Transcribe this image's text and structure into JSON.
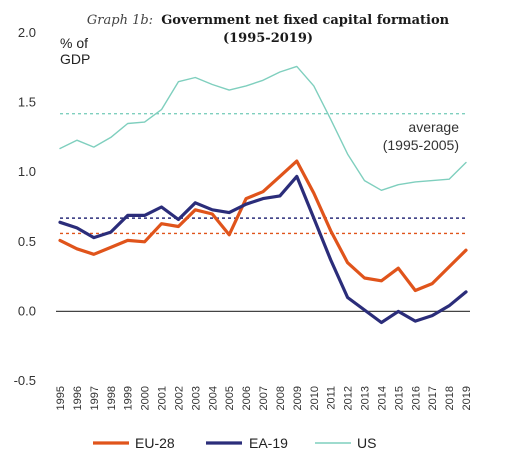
{
  "chart_data": {
    "type": "line",
    "title_prefix": "Graph 1b:",
    "title_main": "Government net fixed capital formation",
    "title_years": "(1995-2019)",
    "ylabel": "% of GDP",
    "ylabel_lines": [
      "% of",
      "GDP"
    ],
    "ylim": [
      -0.5,
      2.0
    ],
    "yticks": [
      "2.0",
      "1.5",
      "1.0",
      "0.5",
      "0.0",
      "-0.5"
    ],
    "ytick_values": [
      2.0,
      1.5,
      1.0,
      0.5,
      0.0,
      -0.5
    ],
    "x": [
      "1995",
      "1996",
      "1997",
      "1998",
      "1999",
      "2000",
      "2001",
      "2002",
      "2003",
      "2004",
      "2005",
      "2006",
      "2007",
      "2008",
      "2009",
      "2010",
      "2011",
      "2012",
      "2013",
      "2014",
      "2015",
      "2016",
      "2017",
      "2018",
      "2019"
    ],
    "series": [
      {
        "name": "EU-28",
        "color": "#e0541b",
        "values": [
          0.51,
          0.45,
          0.41,
          0.46,
          0.51,
          0.5,
          0.63,
          0.61,
          0.73,
          0.7,
          0.55,
          0.81,
          0.86,
          0.97,
          1.08,
          0.85,
          0.58,
          0.35,
          0.24,
          0.22,
          0.31,
          0.15,
          0.2,
          0.32,
          0.44
        ]
      },
      {
        "name": "EA-19",
        "color": "#2b2d7a",
        "values": [
          0.64,
          0.6,
          0.53,
          0.57,
          0.69,
          0.69,
          0.75,
          0.66,
          0.78,
          0.73,
          0.71,
          0.77,
          0.81,
          0.83,
          0.97,
          0.67,
          0.37,
          0.1,
          0.01,
          -0.08,
          0.0,
          -0.07,
          -0.03,
          0.04,
          0.14
        ]
      },
      {
        "name": "US",
        "color": "#7fcfbe",
        "values": [
          1.17,
          1.23,
          1.18,
          1.25,
          1.35,
          1.36,
          1.45,
          1.65,
          1.68,
          1.63,
          1.59,
          1.62,
          1.66,
          1.72,
          1.76,
          1.62,
          1.38,
          1.13,
          0.94,
          0.87,
          0.91,
          0.93,
          0.94,
          0.95,
          1.07
        ]
      }
    ],
    "averages": [
      {
        "series": "US",
        "value": 1.42,
        "color": "#7fcfbe"
      },
      {
        "series": "EA-19",
        "value": 0.67,
        "color": "#2b2d7a"
      },
      {
        "series": "EU-28",
        "value": 0.56,
        "color": "#e0541b"
      }
    ],
    "annotation_lines": [
      "average",
      "(1995-2005)"
    ],
    "legend_position": "bottom",
    "grid": false
  }
}
